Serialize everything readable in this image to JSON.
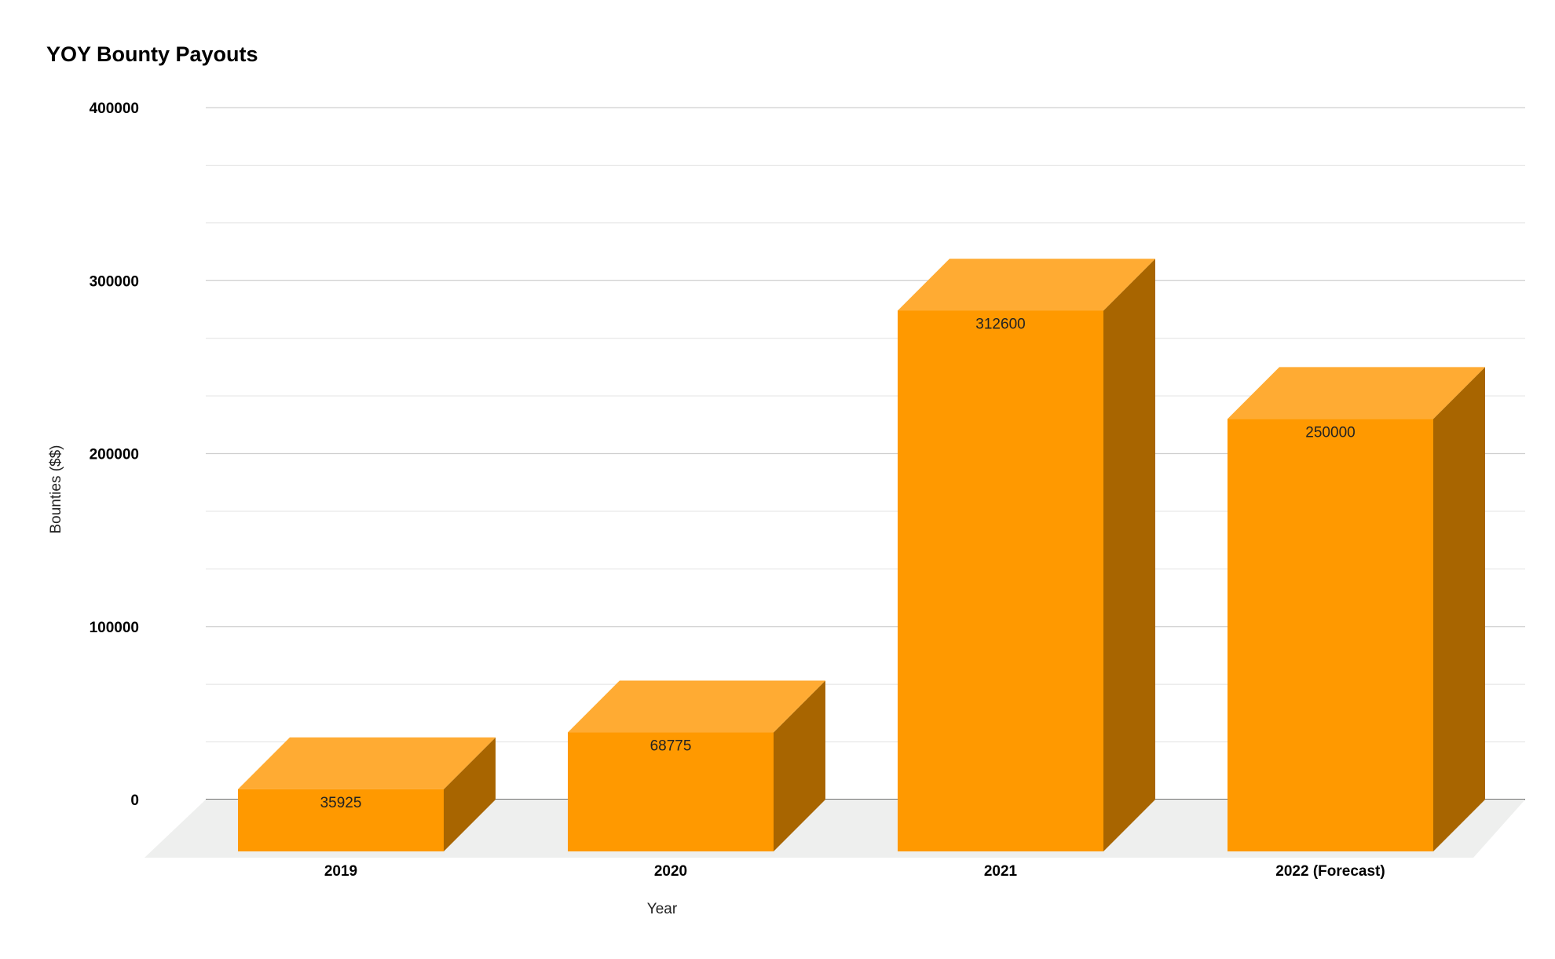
{
  "chart_data": {
    "type": "bar",
    "title": "YOY Bounty Payouts",
    "xlabel": "Year",
    "ylabel": "Bounties ($$)",
    "categories": [
      "2019",
      "2020",
      "2021",
      "2022 (Forecast)"
    ],
    "values": [
      35925,
      68775,
      312600,
      250000
    ],
    "data_labels": [
      "35925",
      "68775",
      "312600",
      "250000"
    ],
    "y_ticks": [
      "0",
      "100000",
      "200000",
      "300000",
      "400000"
    ],
    "ylim": [
      0,
      400000
    ],
    "grid": true,
    "legend": "none",
    "style": "3d",
    "colors": {
      "front": "#FF9900",
      "top": "#FFAB33",
      "side": "#A86500",
      "floor": "#EEEFEE",
      "grid_major": "#CFCFCF",
      "grid_minor": "#E6E6E6"
    }
  }
}
